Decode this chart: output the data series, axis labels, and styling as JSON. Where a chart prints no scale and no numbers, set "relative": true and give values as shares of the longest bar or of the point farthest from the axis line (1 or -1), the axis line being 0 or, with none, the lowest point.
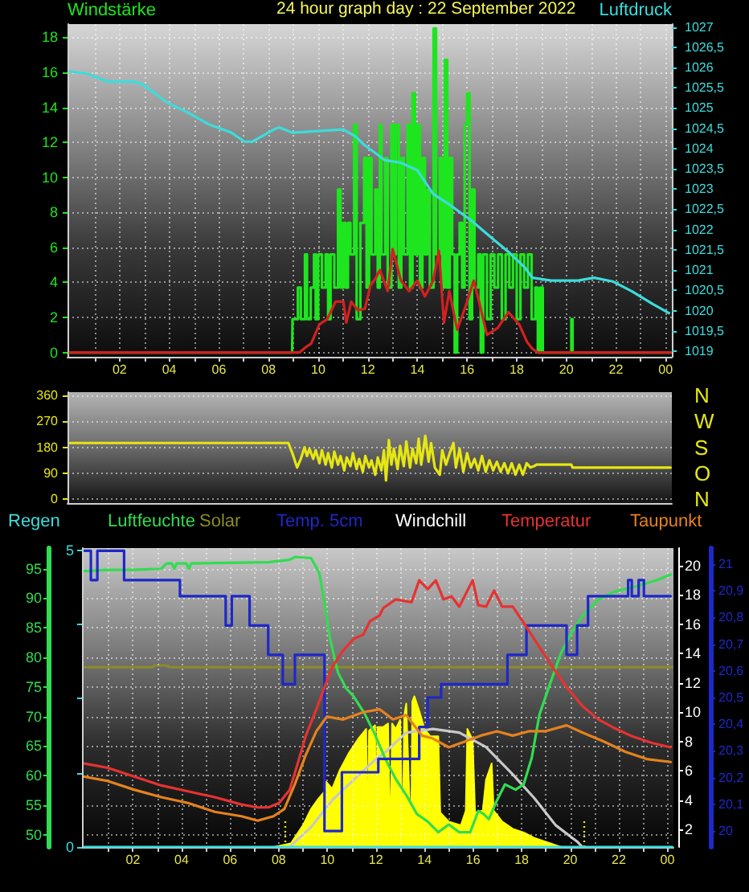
{
  "chart_data": [
    {
      "type": "line",
      "title": "24 hour graph day : 22 September 2022",
      "ylabel": "Windstärke",
      "y2label": "Luftdruck",
      "marker": "none",
      "grid": true,
      "xlim": [
        "2022-09-21T23:54",
        "2022-09-23T00:15"
      ],
      "xticks": [
        {
          "value": "2022-09-22T01:00",
          "label": null
        },
        {
          "value": "2022-09-22T02:00",
          "label": "02"
        },
        {
          "value": "2022-09-22T03:00",
          "label": null
        },
        {
          "value": "2022-09-22T04:00",
          "label": "04"
        },
        {
          "value": "2022-09-22T05:00",
          "label": null
        },
        {
          "value": "2022-09-22T06:00",
          "label": "06"
        },
        {
          "value": "2022-09-22T07:00",
          "label": null
        },
        {
          "value": "2022-09-22T08:00",
          "label": "08"
        },
        {
          "value": "2022-09-22T09:00",
          "label": null
        },
        {
          "value": "2022-09-22T10:00",
          "label": "10"
        },
        {
          "value": "2022-09-22T11:00",
          "label": null
        },
        {
          "value": "2022-09-22T12:00",
          "label": "12"
        },
        {
          "value": "2022-09-22T13:00",
          "label": null
        },
        {
          "value": "2022-09-22T14:00",
          "label": "14"
        },
        {
          "value": "2022-09-22T15:00",
          "label": null
        },
        {
          "value": "2022-09-22T16:00",
          "label": "16"
        },
        {
          "value": "2022-09-22T17:00",
          "label": null
        },
        {
          "value": "2022-09-22T18:00",
          "label": "18"
        },
        {
          "value": "2022-09-22T19:00",
          "label": null
        },
        {
          "value": "2022-09-22T20:00",
          "label": "20"
        },
        {
          "value": "2022-09-22T21:00",
          "label": null
        },
        {
          "value": "2022-09-22T22:00",
          "label": "22"
        },
        {
          "value": "2022-09-22T23:00",
          "label": null
        },
        {
          "value": "2022-09-23T00:00",
          "label": "00"
        }
      ],
      "ylim": [
        -0.25,
        18.75
      ],
      "yticks": [
        0,
        2,
        4,
        6,
        8,
        10,
        12,
        14,
        16,
        18
      ],
      "y2lim": [
        1018.86,
        1027.07
      ],
      "y2ticks": [
        1019,
        {
          "value": 1019.5,
          "label": "1019,5"
        },
        1020,
        {
          "value": 1020.5,
          "label": "1020,5"
        },
        1021,
        {
          "value": 1021.5,
          "label": "1021,5"
        },
        1022,
        {
          "value": 1022.5,
          "label": "1022,5"
        },
        1023,
        {
          "value": 1023.5,
          "label": "1023,5"
        },
        1024,
        {
          "value": 1024.5,
          "label": "1024,5"
        },
        1025,
        {
          "value": 1025.5,
          "label": "1025,5"
        },
        1026,
        {
          "value": 1026.5,
          "label": "1026,5"
        },
        1027
      ],
      "series": [
        {
          "type": "step",
          "color": "#1ee61e",
          "x": [
            "2022-09-22T00:00",
            "2022-09-22T08:57",
            "2022-09-22T08:58",
            "2022-09-22T09:11",
            "2022-09-22T09:18",
            "2022-09-22T09:28",
            "2022-09-22T09:33",
            "2022-09-22T09:42",
            "2022-09-22T09:50",
            "2022-09-22T09:54",
            "2022-09-22T10:00",
            "2022-09-22T10:09",
            "2022-09-22T10:18",
            "2022-09-22T10:24",
            "2022-09-22T10:30",
            "2022-09-22T10:39",
            "2022-09-22T10:48",
            "2022-09-22T10:54",
            "2022-09-22T11:00",
            "2022-09-22T11:06",
            "2022-09-22T11:12",
            "2022-09-22T11:18",
            "2022-09-22T11:27",
            "2022-09-22T11:33",
            "2022-09-22T11:42",
            "2022-09-22T11:51",
            "2022-09-22T11:57",
            "2022-09-22T12:03",
            "2022-09-22T12:09",
            "2022-09-22T12:18",
            "2022-09-22T12:24",
            "2022-09-22T12:29",
            "2022-09-22T12:33",
            "2022-09-22T12:42",
            "2022-09-22T12:48",
            "2022-09-22T12:57",
            "2022-09-22T13:03",
            "2022-09-22T13:08",
            "2022-09-22T13:15",
            "2022-09-22T13:21",
            "2022-09-22T13:27",
            "2022-09-22T13:36",
            "2022-09-22T13:42",
            "2022-09-22T13:48",
            "2022-09-22T13:54",
            "2022-09-22T14:00",
            "2022-09-22T14:06",
            "2022-09-22T14:12",
            "2022-09-22T14:18",
            "2022-09-22T14:24",
            "2022-09-22T14:30",
            "2022-09-22T14:39",
            "2022-09-22T14:45",
            "2022-09-22T14:54",
            "2022-09-22T15:00",
            "2022-09-22T15:06",
            "2022-09-22T15:12",
            "2022-09-22T15:18",
            "2022-09-22T15:24",
            "2022-09-22T15:30",
            "2022-09-22T15:36",
            "2022-09-22T15:42",
            "2022-09-22T15:48",
            "2022-09-22T15:54",
            "2022-09-22T16:00",
            "2022-09-22T16:06",
            "2022-09-22T16:12",
            "2022-09-22T16:18",
            "2022-09-22T16:27",
            "2022-09-22T16:33",
            "2022-09-22T16:39",
            "2022-09-22T16:48",
            "2022-09-22T16:57",
            "2022-09-22T17:06",
            "2022-09-22T17:15",
            "2022-09-22T17:24",
            "2022-09-22T17:33",
            "2022-09-22T17:42",
            "2022-09-22T17:51",
            "2022-09-22T18:00",
            "2022-09-22T18:09",
            "2022-09-22T18:18",
            "2022-09-22T18:27",
            "2022-09-22T18:36",
            "2022-09-22T18:45",
            "2022-09-22T18:51",
            "2022-09-22T18:57",
            "2022-09-22T19:03",
            "2022-09-22T20:09",
            "2022-09-22T20:12",
            "2022-09-22T20:15",
            "2022-09-23T00:12"
          ],
          "values": [
            0,
            0,
            1.9,
            3.7,
            1.9,
            5.6,
            1.9,
            3.7,
            5.6,
            1.9,
            5.6,
            3.7,
            5.6,
            1.9,
            5.6,
            3.7,
            9.3,
            3.7,
            7.4,
            3.7,
            7.4,
            5.6,
            13.0,
            1.9,
            7.4,
            11.1,
            3.7,
            11.1,
            5.6,
            9.3,
            3.7,
            13.0,
            5.6,
            11.1,
            3.7,
            13.0,
            5.6,
            13.0,
            3.7,
            11.1,
            5.6,
            13.0,
            3.7,
            14.8,
            5.6,
            13.0,
            3.7,
            11.1,
            5.6,
            9.3,
            3.7,
            18.5,
            5.6,
            11.1,
            3.7,
            16.7,
            3.7,
            11.1,
            5.6,
            0,
            5.6,
            7.4,
            3.7,
            13.0,
            14.8,
            1.9,
            9.3,
            3.7,
            5.6,
            0,
            5.6,
            1.9,
            5.6,
            3.7,
            5.6,
            1.9,
            5.6,
            3.7,
            5.6,
            1.9,
            5.6,
            3.7,
            5.6,
            1.9,
            3.7,
            0,
            3.7,
            0,
            0,
            1.9,
            0,
            0
          ]
        },
        {
          "color": "#d42020",
          "x": [
            "2022-09-22T00:00",
            "2022-09-22T09:15",
            "2022-09-22T09:30",
            "2022-09-22T09:43",
            "2022-09-22T10:03",
            "2022-09-22T10:22",
            "2022-09-22T10:42",
            "2022-09-22T11:01",
            "2022-09-22T11:08",
            "2022-09-22T11:20",
            "2022-09-22T11:36",
            "2022-09-22T11:53",
            "2022-09-22T12:06",
            "2022-09-22T12:18",
            "2022-09-22T12:29",
            "2022-09-22T12:48",
            "2022-09-22T13:00",
            "2022-09-22T13:20",
            "2022-09-22T13:40",
            "2022-09-22T14:00",
            "2022-09-22T14:18",
            "2022-09-22T14:38",
            "2022-09-22T14:52",
            "2022-09-22T15:04",
            "2022-09-22T15:17",
            "2022-09-22T15:36",
            "2022-09-22T15:56",
            "2022-09-22T16:16",
            "2022-09-22T16:29",
            "2022-09-22T16:48",
            "2022-09-22T17:14",
            "2022-09-22T17:40",
            "2022-09-22T18:06",
            "2022-09-22T18:25",
            "2022-09-22T18:38",
            "2022-09-22T18:51",
            "2022-09-23T00:12"
          ],
          "values": [
            0,
            0,
            0.3,
            0.5,
            1.6,
            1.9,
            2.9,
            2.9,
            1.7,
            2.9,
            2.4,
            2.5,
            3.8,
            4.2,
            4.7,
            3.5,
            5.9,
            4.1,
            3.5,
            4.1,
            3.2,
            4.1,
            5.8,
            1.7,
            3.5,
            1.3,
            2.6,
            4.1,
            2.9,
            1.0,
            1.4,
            2.3,
            1.6,
            0.6,
            0.2,
            0,
            0
          ]
        },
        {
          "color": "#3cdcdc",
          "axis": "y2",
          "x": [
            "2022-09-22T00:00",
            "2022-09-22T00:40",
            "2022-09-22T01:31",
            "2022-09-22T02:36",
            "2022-09-22T02:56",
            "2022-09-22T03:54",
            "2022-09-22T04:46",
            "2022-09-22T05:37",
            "2022-09-22T06:29",
            "2022-09-22T07:02",
            "2022-09-22T07:21",
            "2022-09-22T08:13",
            "2022-09-22T08:26",
            "2022-09-22T08:58",
            "2022-09-22T09:56",
            "2022-09-22T11:01",
            "2022-09-22T11:30",
            "2022-09-22T11:50",
            "2022-09-22T12:42",
            "2022-09-22T13:20",
            "2022-09-22T14:00",
            "2022-09-22T14:38",
            "2022-09-22T15:17",
            "2022-09-22T16:09",
            "2022-09-22T17:01",
            "2022-09-22T17:40",
            "2022-09-22T18:19",
            "2022-09-22T18:38",
            "2022-09-22T19:23",
            "2022-09-22T20:28",
            "2022-09-22T21:07",
            "2022-09-22T21:52",
            "2022-09-22T22:38",
            "2022-09-22T23:29",
            "2022-09-23T00:08"
          ],
          "values": [
            1025.9,
            1025.85,
            1025.65,
            1025.65,
            1025.58,
            1025.14,
            1024.88,
            1024.59,
            1024.4,
            1024.17,
            1024.17,
            1024.47,
            1024.52,
            1024.39,
            1024.43,
            1024.47,
            1024.3,
            1024.1,
            1023.71,
            1023.65,
            1023.46,
            1022.88,
            1022.62,
            1022.23,
            1021.78,
            1021.45,
            1021.07,
            1020.81,
            1020.74,
            1020.74,
            1020.81,
            1020.72,
            1020.48,
            1020.16,
            1019.94
          ]
        }
      ]
    },
    {
      "type": "line",
      "marker": "none",
      "grid": "y",
      "tick_labels": "y",
      "xlim": [
        "2022-09-21T23:54",
        "2022-09-23T00:15"
      ],
      "ylim": [
        -13,
        371
      ],
      "yticks": [
        0,
        90,
        180,
        270,
        360
      ],
      "annotations": [
        "N",
        "W",
        "S",
        "O",
        "N"
      ],
      "series": [
        {
          "color": "#e6e614",
          "x": [
            "2022-09-22T00:00",
            "2022-09-22T08:48",
            "2022-09-22T09:00",
            "2022-09-22T09:09",
            "2022-09-22T09:18",
            "2022-09-22T09:27",
            "2022-09-22T09:33",
            "2022-09-22T09:39",
            "2022-09-22T09:48",
            "2022-09-22T09:54",
            "2022-09-22T10:03",
            "2022-09-22T10:09",
            "2022-09-22T10:18",
            "2022-09-22T10:24",
            "2022-09-22T10:33",
            "2022-09-22T10:39",
            "2022-09-22T10:48",
            "2022-09-22T10:54",
            "2022-09-22T11:03",
            "2022-09-22T11:09",
            "2022-09-22T11:18",
            "2022-09-22T11:24",
            "2022-09-22T11:33",
            "2022-09-22T11:39",
            "2022-09-22T11:48",
            "2022-09-22T11:54",
            "2022-09-22T12:03",
            "2022-09-22T12:09",
            "2022-09-22T12:18",
            "2022-09-22T12:24",
            "2022-09-22T12:33",
            "2022-09-22T12:39",
            "2022-09-22T12:44",
            "2022-09-22T12:51",
            "2022-09-22T12:57",
            "2022-09-22T13:03",
            "2022-09-22T13:12",
            "2022-09-22T13:18",
            "2022-09-22T13:27",
            "2022-09-22T13:33",
            "2022-09-22T13:42",
            "2022-09-22T13:48",
            "2022-09-22T13:57",
            "2022-09-22T14:03",
            "2022-09-22T14:09",
            "2022-09-22T14:19",
            "2022-09-22T14:27",
            "2022-09-22T14:33",
            "2022-09-22T14:42",
            "2022-09-22T14:54",
            "2022-09-22T15:00",
            "2022-09-22T15:09",
            "2022-09-22T15:18",
            "2022-09-22T15:27",
            "2022-09-22T15:33",
            "2022-09-22T15:42",
            "2022-09-22T15:51",
            "2022-09-22T16:00",
            "2022-09-22T16:09",
            "2022-09-22T16:18",
            "2022-09-22T16:27",
            "2022-09-22T16:36",
            "2022-09-22T16:45",
            "2022-09-22T16:54",
            "2022-09-22T17:03",
            "2022-09-22T17:12",
            "2022-09-22T17:21",
            "2022-09-22T17:30",
            "2022-09-22T17:39",
            "2022-09-22T17:48",
            "2022-09-22T17:57",
            "2022-09-22T18:06",
            "2022-09-22T18:15",
            "2022-09-22T18:24",
            "2022-09-22T18:33",
            "2022-09-22T18:42",
            "2022-09-22T18:48",
            "2022-09-22T20:12",
            "2022-09-22T20:15",
            "2022-09-23T00:12"
          ],
          "values": [
            195,
            195,
            150,
            110,
            140,
            180,
            150,
            175,
            140,
            170,
            125,
            170,
            120,
            160,
            110,
            165,
            120,
            150,
            100,
            145,
            115,
            160,
            105,
            140,
            95,
            150,
            110,
            135,
            85,
            145,
            100,
            170,
            65,
            205,
            120,
            175,
            105,
            185,
            115,
            200,
            110,
            175,
            125,
            210,
            120,
            220,
            130,
            195,
            110,
            85,
            170,
            120,
            160,
            195,
            110,
            175,
            95,
            160,
            110,
            140,
            100,
            150,
            95,
            135,
            100,
            130,
            95,
            125,
            90,
            125,
            85,
            120,
            85,
            125,
            110,
            115,
            120,
            120,
            110,
            110
          ]
        }
      ]
    },
    {
      "type": "line",
      "marker": "none",
      "grid": true,
      "legend": "top",
      "xlim": [
        "2022-09-21T23:54",
        "2022-09-23T00:15"
      ],
      "xticks": [
        {
          "value": "2022-09-22T01:00",
          "label": null
        },
        {
          "value": "2022-09-22T02:00",
          "label": "02"
        },
        {
          "value": "2022-09-22T03:00",
          "label": null
        },
        {
          "value": "2022-09-22T04:00",
          "label": "04"
        },
        {
          "value": "2022-09-22T05:00",
          "label": null
        },
        {
          "value": "2022-09-22T06:00",
          "label": "06"
        },
        {
          "value": "2022-09-22T07:00",
          "label": null
        },
        {
          "value": "2022-09-22T08:00",
          "label": "08"
        },
        {
          "value": "2022-09-22T09:00",
          "label": null
        },
        {
          "value": "2022-09-22T10:00",
          "label": "10"
        },
        {
          "value": "2022-09-22T11:00",
          "label": null
        },
        {
          "value": "2022-09-22T12:00",
          "label": "12"
        },
        {
          "value": "2022-09-22T13:00",
          "label": null
        },
        {
          "value": "2022-09-22T14:00",
          "label": "14"
        },
        {
          "value": "2022-09-22T15:00",
          "label": null
        },
        {
          "value": "2022-09-22T16:00",
          "label": "16"
        },
        {
          "value": "2022-09-22T17:00",
          "label": null
        },
        {
          "value": "2022-09-22T18:00",
          "label": "18"
        },
        {
          "value": "2022-09-22T19:00",
          "label": null
        },
        {
          "value": "2022-09-22T20:00",
          "label": "20"
        },
        {
          "value": "2022-09-22T21:00",
          "label": null
        },
        {
          "value": "2022-09-22T22:00",
          "label": "22"
        },
        {
          "value": "2022-09-22T23:00",
          "label": null
        },
        {
          "value": "2022-09-23T00:00",
          "label": "00"
        }
      ],
      "ylim": [
        47.9,
        98.5
      ],
      "yticks": [
        50,
        55,
        60,
        65,
        70,
        75,
        80,
        85,
        90,
        95
      ],
      "y2lim": [
        0.8,
        21.2
      ],
      "y2ticks": [
        2,
        4,
        6,
        8,
        10,
        12,
        14,
        16,
        18,
        20
      ],
      "y3lim": [
        19.94,
        21.06
      ],
      "y3ticks": [
        20,
        {
          "value": 20.1,
          "label": "20,1"
        },
        {
          "value": 20.2,
          "label": "20,2"
        },
        {
          "value": 20.3,
          "label": "20,3"
        },
        {
          "value": 20.4,
          "label": "20,4"
        },
        {
          "value": 20.5,
          "label": "20,5"
        },
        {
          "value": 20.6,
          "label": "20,6"
        },
        {
          "value": 20.7,
          "label": "20,7"
        },
        {
          "value": 20.8,
          "label": "20,8"
        },
        {
          "value": 20.9,
          "label": "20,9"
        },
        21
      ],
      "ref_lines": [
        {
          "axis": "x",
          "value": "2022-09-22T08:17",
          "color": "#e6e614",
          "line_style": "dotted"
        },
        {
          "axis": "x",
          "value": "2022-09-22T20:34",
          "color": "#e6e614",
          "line_style": "dotted"
        }
      ],
      "series": [
        {
          "name": "Luftfeuchte",
          "color": "#32dc50",
          "x": [
            "2022-09-22T00:00",
            "2022-09-22T01:00",
            "2022-09-22T02:00",
            "2022-09-22T03:10",
            "2022-09-22T03:23",
            "2022-09-22T03:36",
            "2022-09-22T03:42",
            "2022-09-22T03:48",
            "2022-09-22T04:12",
            "2022-09-22T04:18",
            "2022-09-22T04:24",
            "2022-09-22T06:00",
            "2022-09-22T07:34",
            "2022-09-22T08:27",
            "2022-09-22T08:40",
            "2022-09-22T09:20",
            "2022-09-22T09:40",
            "2022-09-22T09:53",
            "2022-09-22T10:06",
            "2022-09-22T10:26",
            "2022-09-22T10:46",
            "2022-09-22T11:05",
            "2022-09-22T11:32",
            "2022-09-22T11:56",
            "2022-09-22T12:22",
            "2022-09-22T12:49",
            "2022-09-22T13:15",
            "2022-09-22T13:41",
            "2022-09-22T14:08",
            "2022-09-22T14:34",
            "2022-09-22T15:00",
            "2022-09-22T15:26",
            "2022-09-22T15:53",
            "2022-09-22T16:13",
            "2022-09-22T16:26",
            "2022-09-22T16:39",
            "2022-09-22T16:59",
            "2022-09-22T17:19",
            "2022-09-22T17:45",
            "2022-09-22T18:05",
            "2022-09-22T18:25",
            "2022-09-22T18:44",
            "2022-09-22T19:11",
            "2022-09-22T19:37",
            "2022-09-22T20:04",
            "2022-09-22T20:30",
            "2022-09-22T21:10",
            "2022-09-22T21:49",
            "2022-09-22T22:42",
            "2022-09-22T23:35",
            "2022-09-23T00:08"
          ],
          "values": [
            94.6,
            94.8,
            94.8,
            95.0,
            95.9,
            95.9,
            95.0,
            95.9,
            95.9,
            95.0,
            95.9,
            96.0,
            96.1,
            96.5,
            97.0,
            96.8,
            94.3,
            89.3,
            83.4,
            77.5,
            74.8,
            73.4,
            70.5,
            67.2,
            63.0,
            59.4,
            56.7,
            53.5,
            52.2,
            50.4,
            51.7,
            50.4,
            50.4,
            54.0,
            53.5,
            52.6,
            55.8,
            58.5,
            57.6,
            58.5,
            63.0,
            70.3,
            75.7,
            80.7,
            84.3,
            87.0,
            89.8,
            91.1,
            92.0,
            93.1,
            94.0
          ]
        },
        {
          "name": "Temp. 5cm",
          "type": "step",
          "axis": "y3",
          "color": "#1e28c8",
          "x": [
            "2022-09-22T00:00",
            "2022-09-22T00:16",
            "2022-09-22T00:32",
            "2022-09-22T01:38",
            "2022-09-22T03:56",
            "2022-09-22T05:49",
            "2022-09-22T06:04",
            "2022-09-22T06:48",
            "2022-09-22T07:34",
            "2022-09-22T08:10",
            "2022-09-22T08:40",
            "2022-09-22T09:53",
            "2022-09-22T10:36",
            "2022-09-22T12:06",
            "2022-09-22T13:47",
            "2022-09-22T14:08",
            "2022-09-22T14:41",
            "2022-09-22T17:25",
            "2022-09-22T18:12",
            "2022-09-22T19:51",
            "2022-09-22T20:17",
            "2022-09-22T20:44",
            "2022-09-22T22:23",
            "2022-09-22T22:32",
            "2022-09-22T22:49",
            "2022-09-22T23:02",
            "2022-09-23T00:08"
          ],
          "values": [
            21.05,
            20.94,
            21.05,
            20.94,
            20.88,
            20.77,
            20.88,
            20.77,
            20.66,
            20.55,
            20.66,
            20.0,
            20.22,
            20.27,
            20.39,
            20.5,
            20.55,
            20.66,
            20.77,
            20.66,
            20.77,
            20.88,
            20.94,
            20.88,
            20.94,
            20.88,
            20.88
          ]
        },
        {
          "name": "Windchill",
          "axis": "y2",
          "color": "#ffffff",
          "values": [
            null,
            null
          ]
        },
        {
          "name": "Temperatur",
          "axis": "y2",
          "color": "#e63232",
          "x": [
            "2022-09-22T00:00",
            "2022-09-22T00:58",
            "2022-09-22T02:04",
            "2022-09-22T03:10",
            "2022-09-22T04:16",
            "2022-09-22T05:22",
            "2022-09-22T06:28",
            "2022-09-22T07:08",
            "2022-09-22T07:34",
            "2022-09-22T08:01",
            "2022-09-22T08:27",
            "2022-09-22T08:47",
            "2022-09-22T09:07",
            "2022-09-22T09:33",
            "2022-09-22T09:53",
            "2022-09-22T10:13",
            "2022-09-22T10:39",
            "2022-09-22T11:05",
            "2022-09-22T11:29",
            "2022-09-22T11:45",
            "2022-09-22T12:09",
            "2022-09-22T12:18",
            "2022-09-22T12:49",
            "2022-09-22T13:28",
            "2022-09-22T13:47",
            "2022-09-22T14:08",
            "2022-09-22T14:28",
            "2022-09-22T14:47",
            "2022-09-22T15:07",
            "2022-09-22T15:26",
            "2022-09-22T15:59",
            "2022-09-22T16:13",
            "2022-09-22T16:32",
            "2022-09-22T16:52",
            "2022-09-22T17:12",
            "2022-09-22T17:38",
            "2022-09-22T18:05",
            "2022-09-22T18:31",
            "2022-09-22T19:11",
            "2022-09-22T19:51",
            "2022-09-22T20:31",
            "2022-09-22T21:10",
            "2022-09-22T21:50",
            "2022-09-22T22:29",
            "2022-09-22T23:22",
            "2022-09-23T00:08"
          ],
          "values": [
            6.5,
            6.2,
            5.6,
            5.0,
            4.6,
            4.2,
            3.7,
            3.5,
            3.5,
            3.8,
            4.7,
            6.5,
            8.4,
            10.2,
            11.7,
            13.1,
            14.2,
            15.0,
            15.3,
            16.2,
            16.6,
            17.1,
            17.7,
            17.5,
            19.0,
            18.4,
            19.0,
            17.7,
            17.9,
            17.2,
            19.0,
            17.3,
            17.2,
            18.3,
            17.2,
            17.2,
            16.1,
            15.0,
            13.3,
            11.7,
            10.4,
            9.5,
            8.9,
            8.4,
            7.9,
            7.6
          ]
        },
        {
          "name": "Taupunkt",
          "axis": "y2",
          "color": "#e6821e",
          "x": [
            "2022-09-22T00:00",
            "2022-09-22T00:58",
            "2022-09-22T02:04",
            "2022-09-22T03:10",
            "2022-09-22T04:16",
            "2022-09-22T05:22",
            "2022-09-22T06:28",
            "2022-09-22T07:08",
            "2022-09-22T07:47",
            "2022-09-22T08:14",
            "2022-09-22T08:40",
            "2022-09-22T09:07",
            "2022-09-22T09:33",
            "2022-09-22T09:59",
            "2022-09-22T10:39",
            "2022-09-22T11:29",
            "2022-09-22T12:09",
            "2022-09-22T12:42",
            "2022-09-22T13:15",
            "2022-09-22T13:54",
            "2022-09-22T14:21",
            "2022-09-22T15:00",
            "2022-09-22T15:40",
            "2022-09-22T16:19",
            "2022-09-22T16:59",
            "2022-09-22T17:38",
            "2022-09-22T18:18",
            "2022-09-22T18:58",
            "2022-09-22T19:51",
            "2022-09-22T20:31",
            "2022-09-22T21:23",
            "2022-09-22T22:16",
            "2022-09-22T23:09",
            "2022-09-23T00:08"
          ],
          "values": [
            5.6,
            5.3,
            4.7,
            4.2,
            3.8,
            3.2,
            2.9,
            2.6,
            2.9,
            3.4,
            5.1,
            7.1,
            8.7,
            9.7,
            9.5,
            10.0,
            10.2,
            9.5,
            9.8,
            8.4,
            8.2,
            7.6,
            8.0,
            8.4,
            8.7,
            8.4,
            8.7,
            8.7,
            9.1,
            8.6,
            8.0,
            7.3,
            6.8,
            6.6
          ]
        }
      ]
    },
    {
      "type": "line",
      "marker": "none",
      "legend": "top",
      "tick_labels": "y",
      "xlim": [
        "2022-09-21T23:54",
        "2022-09-23T00:15"
      ],
      "ylim": [
        0,
        5.04
      ],
      "yticks": [
        0,
        {
          "value": 1.25,
          "label": null
        },
        {
          "value": 2.5,
          "label": null
        },
        {
          "value": 3.75,
          "label": null
        },
        5
      ],
      "series": [
        {
          "name": "Regen",
          "color": "#3cdcdc",
          "x": [
            "2022-09-22T00:00",
            "2022-09-23T00:12"
          ],
          "values": [
            0,
            0
          ]
        }
      ]
    },
    {
      "type": "line",
      "relative": true,
      "marker": "none",
      "legend": "top",
      "tick_labels": false,
      "xlim": [
        "2022-09-21T23:54",
        "2022-09-23T00:15"
      ],
      "series": [
        {
          "type": "area",
          "color": "#ffff00",
          "x": [
            "2022-09-22T00:00",
            "2022-09-22T07:48",
            "2022-09-22T08:30",
            "2022-09-22T09:00",
            "2022-09-22T09:20",
            "2022-09-22T09:36",
            "2022-09-22T09:51",
            "2022-09-22T09:54",
            "2022-09-22T09:57",
            "2022-09-22T10:12",
            "2022-09-22T10:30",
            "2022-09-22T10:54",
            "2022-09-22T11:18",
            "2022-09-22T11:36",
            "2022-09-22T11:39",
            "2022-09-22T11:43",
            "2022-09-22T11:58",
            "2022-09-22T12:00",
            "2022-09-22T12:04",
            "2022-09-22T12:18",
            "2022-09-22T12:30",
            "2022-09-22T12:36",
            "2022-09-22T12:40",
            "2022-09-22T12:49",
            "2022-09-22T13:00",
            "2022-09-22T13:06",
            "2022-09-22T13:10",
            "2022-09-22T13:15",
            "2022-09-22T13:27",
            "2022-09-22T13:30",
            "2022-09-22T13:35",
            "2022-09-22T13:47",
            "2022-09-22T14:00",
            "2022-09-22T14:14",
            "2022-09-22T14:34",
            "2022-09-22T14:39",
            "2022-09-22T15:00",
            "2022-09-22T15:30",
            "2022-09-22T15:42",
            "2022-09-22T15:46",
            "2022-09-22T15:59",
            "2022-09-22T16:05",
            "2022-09-22T16:24",
            "2022-09-22T16:32",
            "2022-09-22T16:46",
            "2022-09-22T16:51",
            "2022-09-22T17:12",
            "2022-09-22T17:38",
            "2022-09-22T18:05",
            "2022-09-22T18:31",
            "2022-09-22T19:11",
            "2022-09-22T19:37",
            "2022-09-23T00:12"
          ],
          "values": [
            0,
            0,
            0.02,
            0.12,
            0.21,
            0.26,
            0.3,
            0,
            0.36,
            0.32,
            0.42,
            0.52,
            0.6,
            0.65,
            0,
            0.64,
            0.67,
            0,
            0.66,
            0.66,
            0.68,
            0,
            0.68,
            0.65,
            0.7,
            0,
            0.72,
            0.79,
            0,
            0.8,
            0.83,
            0.75,
            0.65,
            0.61,
            0.61,
            0.19,
            0.14,
            0.12,
            0.2,
            0.65,
            0.59,
            0.19,
            0.2,
            0.37,
            0.46,
            0.2,
            0.14,
            0.1,
            0.08,
            0.05,
            0.02,
            0,
            0
          ]
        },
        {
          "color": "#c8c8c8",
          "x": [
            "2022-09-22T08:27",
            "2022-09-22T09:20",
            "2022-09-22T10:13",
            "2022-09-22T11:05",
            "2022-09-22T11:58",
            "2022-09-22T12:22",
            "2022-09-22T13:15",
            "2022-09-22T14:21",
            "2022-09-22T15:26",
            "2022-09-22T16:32",
            "2022-09-22T17:38",
            "2022-09-22T18:31",
            "2022-09-22T19:24",
            "2022-09-22T20:17",
            "2022-09-22T20:30"
          ],
          "values": [
            0,
            0.11,
            0.26,
            0.37,
            0.48,
            0.52,
            0.63,
            0.65,
            0.63,
            0.55,
            0.4,
            0.27,
            0.12,
            0.03,
            0
          ]
        },
        {
          "name": "Solar",
          "color": "#8c8c28",
          "x": [
            "2022-09-22T00:00",
            "2022-09-22T02:48",
            "2022-09-22T02:54",
            "2022-09-22T03:24",
            "2022-09-22T03:30",
            "2022-09-23T00:12"
          ],
          "values": [
            0.99,
            0.99,
            1.0,
            1.0,
            0.99,
            0.99
          ]
        }
      ]
    }
  ]
}
